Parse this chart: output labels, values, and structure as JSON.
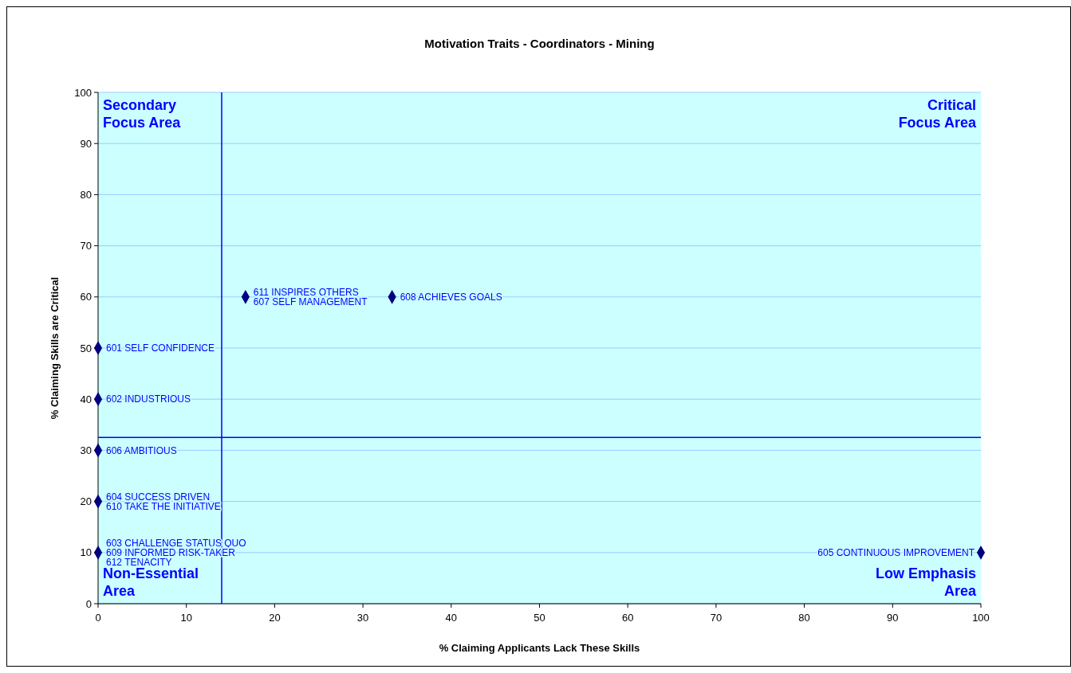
{
  "chart_data": {
    "type": "scatter",
    "title": "Motivation Traits - Coordinators -  Mining",
    "xlabel": "% Claiming Applicants Lack These Skills",
    "ylabel": "% Claiming Skills are Critical",
    "x": [
      0,
      0,
      0,
      0,
      0,
      16.7,
      33.3,
      100
    ],
    "series": [
      {
        "color": "#000080",
        "values": [
          50,
          40,
          30,
          20,
          10,
          60,
          60,
          10
        ]
      }
    ],
    "marker": "diamond",
    "grid": "y",
    "xlim": [
      0,
      100
    ],
    "xticks": [
      0,
      10,
      20,
      30,
      40,
      50,
      60,
      70,
      80,
      90,
      100
    ],
    "ylim": [
      0,
      100
    ],
    "yticks": [
      0,
      10,
      20,
      30,
      40,
      50,
      60,
      70,
      80,
      90,
      100
    ],
    "ref_lines": [
      {
        "axis": "x",
        "value": 14,
        "color": "#0000ff"
      },
      {
        "axis": "y",
        "value": 32.5,
        "color": "#0000ff"
      }
    ],
    "annotations": [
      "Secondary\nFocus Area",
      "Critical\nFocus Area",
      "Non-Essential\nArea",
      "Low Emphasis\nArea",
      {
        "text": "611 INSPIRES OTHERS",
        "x": 16.7,
        "y": 60
      },
      {
        "text": "607 SELF MANAGEMENT",
        "x": 16.7,
        "y": 60
      },
      {
        "text": "608 ACHIEVES GOALS",
        "x": 33.3,
        "y": 60
      },
      {
        "text": "601 SELF CONFIDENCE",
        "x": 0,
        "y": 50
      },
      {
        "text": "602 INDUSTRIOUS",
        "x": 0,
        "y": 40
      },
      {
        "text": "606 AMBITIOUS",
        "x": 0,
        "y": 30
      },
      {
        "text": "604 SUCCESS DRIVEN",
        "x": 0,
        "y": 20
      },
      {
        "text": "610 TAKE THE INITIATIVE",
        "x": 0,
        "y": 20
      },
      {
        "text": "603 CHALLENGE STATUS QUO",
        "x": 0,
        "y": 10
      },
      {
        "text": "609 INFORMED RISK-TAKER",
        "x": 0,
        "y": 10
      },
      {
        "text": "612 TENACITY",
        "x": 0,
        "y": 10
      },
      {
        "text": "605 CONTINUOUS IMPROVEMENT",
        "x": 100,
        "y": 10
      }
    ]
  }
}
